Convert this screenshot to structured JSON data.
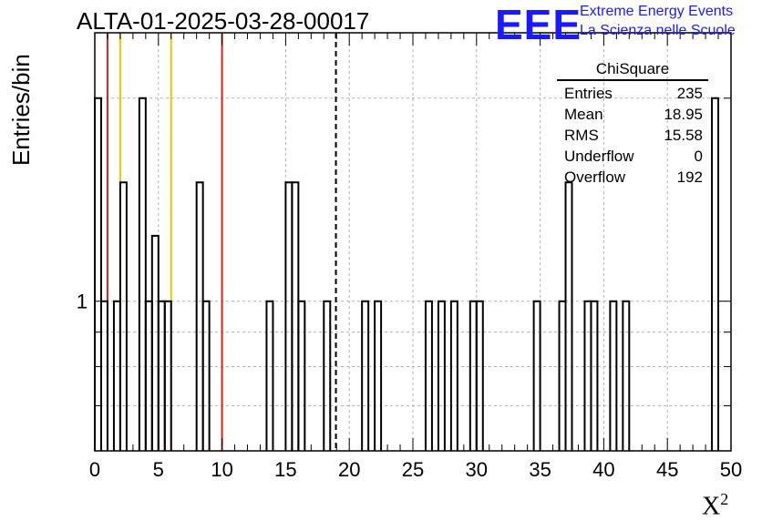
{
  "run_title": "ALTA-01-2025-03-28-00017",
  "logo": {
    "mark": "EEE",
    "line1": "Extreme Energy Events",
    "line2": "La Scienza nelle Scuole",
    "color": "#1a1aff"
  },
  "stats_box": {
    "title": "ChiSquare",
    "rows": [
      {
        "label": "Entries",
        "value": "235"
      },
      {
        "label": "Mean",
        "value": "18.95"
      },
      {
        "label": "RMS",
        "value": "15.58"
      },
      {
        "label": "Underflow",
        "value": "0"
      },
      {
        "label": "Overflow",
        "value": "192"
      }
    ]
  },
  "chart_data": {
    "type": "histogram",
    "title": "ALTA-01-2025-03-28-00017",
    "xlabel": "X",
    "xlabel_superscript": "2",
    "ylabel": "Entries/bin",
    "xlim": [
      0,
      50
    ],
    "ylim": [
      0.6,
      2.5
    ],
    "log_y": true,
    "grid": true,
    "bin_width": 0.5,
    "x_ticks": [
      "0",
      "5",
      "10",
      "15",
      "20",
      "25",
      "30",
      "35",
      "40",
      "45",
      "50"
    ],
    "y_tick_labels": [
      "1"
    ],
    "bins": [
      {
        "x": 0.0,
        "y": 2
      },
      {
        "x": 0.5,
        "y": 1
      },
      {
        "x": 1.5,
        "y": 1
      },
      {
        "x": 2.0,
        "y": 1.5
      },
      {
        "x": 3.5,
        "y": 2
      },
      {
        "x": 4.0,
        "y": 1
      },
      {
        "x": 4.5,
        "y": 1.25
      },
      {
        "x": 5.0,
        "y": 1
      },
      {
        "x": 5.5,
        "y": 1
      },
      {
        "x": 8.0,
        "y": 1.5
      },
      {
        "x": 8.5,
        "y": 1
      },
      {
        "x": 13.5,
        "y": 1
      },
      {
        "x": 15.0,
        "y": 1.5
      },
      {
        "x": 15.5,
        "y": 1.5
      },
      {
        "x": 16.0,
        "y": 1
      },
      {
        "x": 18.0,
        "y": 1
      },
      {
        "x": 21.0,
        "y": 1
      },
      {
        "x": 22.0,
        "y": 1
      },
      {
        "x": 26.0,
        "y": 1
      },
      {
        "x": 27.0,
        "y": 1
      },
      {
        "x": 28.0,
        "y": 1
      },
      {
        "x": 29.5,
        "y": 1
      },
      {
        "x": 30.0,
        "y": 1
      },
      {
        "x": 34.5,
        "y": 1
      },
      {
        "x": 36.5,
        "y": 1
      },
      {
        "x": 37.0,
        "y": 1.5
      },
      {
        "x": 38.5,
        "y": 1
      },
      {
        "x": 39.0,
        "y": 1
      },
      {
        "x": 40.5,
        "y": 1
      },
      {
        "x": 41.5,
        "y": 1
      },
      {
        "x": 48.5,
        "y": 2
      }
    ],
    "vertical_markers": [
      {
        "x": 1.0,
        "color": "#dd2222",
        "style": "solid"
      },
      {
        "x": 10.0,
        "color": "#dd2222",
        "style": "solid"
      },
      {
        "x": 2.0,
        "color": "#f5c400",
        "style": "solid"
      },
      {
        "x": 6.0,
        "color": "#f5c400",
        "style": "solid"
      },
      {
        "x": 18.95,
        "color": "#000000",
        "style": "dashed"
      }
    ]
  }
}
